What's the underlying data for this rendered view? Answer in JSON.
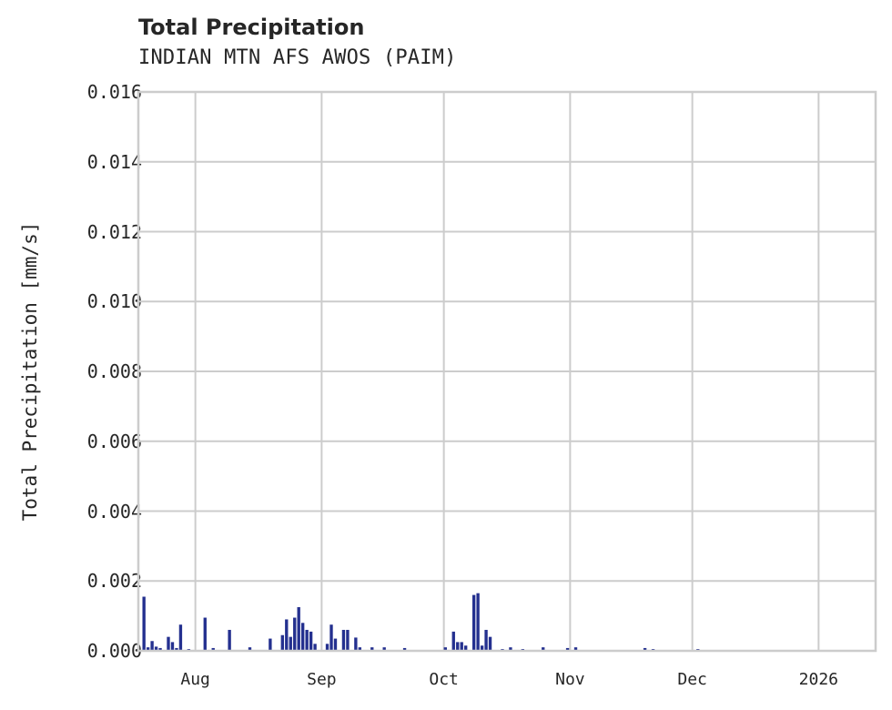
{
  "title": "Total Precipitation",
  "subtitle": "INDIAN MTN AFS AWOS (PAIM)",
  "colors": {
    "bar": "#24308f",
    "grid": "#cccccc",
    "text": "#262626"
  },
  "chart_data": {
    "type": "bar",
    "title": "Total Precipitation",
    "subtitle": "INDIAN MTN AFS AWOS (PAIM)",
    "xlabel": "",
    "ylabel": "Total Precipitation [mm/s]",
    "ylim": [
      0,
      0.016
    ],
    "yticks": [
      "0.000",
      "0.002",
      "0.004",
      "0.006",
      "0.008",
      "0.010",
      "0.012",
      "0.014",
      "0.016"
    ],
    "xticks": [
      "Aug",
      "Sep",
      "Oct",
      "Nov",
      "Dec",
      "2026"
    ],
    "xrange": [
      "2025-07-18",
      "2026-01-15"
    ],
    "grid": true,
    "legend": null,
    "series": [
      {
        "name": "Total Precipitation",
        "points": [
          [
            "2025-07-19",
            0.00155
          ],
          [
            "2025-07-20",
            0.0001
          ],
          [
            "2025-07-21",
            0.00028
          ],
          [
            "2025-07-22",
            0.00012
          ],
          [
            "2025-07-23",
            8e-05
          ],
          [
            "2025-07-25",
            0.0004
          ],
          [
            "2025-07-26",
            0.00025
          ],
          [
            "2025-07-27",
            8e-05
          ],
          [
            "2025-07-28",
            0.00075
          ],
          [
            "2025-07-30",
            5e-05
          ],
          [
            "2025-08-03",
            0.00095
          ],
          [
            "2025-08-05",
            8e-05
          ],
          [
            "2025-08-09",
            0.0006
          ],
          [
            "2025-08-14",
            0.0001
          ],
          [
            "2025-08-19",
            0.00035
          ],
          [
            "2025-08-22",
            0.00045
          ],
          [
            "2025-08-23",
            0.0009
          ],
          [
            "2025-08-24",
            0.0004
          ],
          [
            "2025-08-25",
            0.00095
          ],
          [
            "2025-08-26",
            0.00125
          ],
          [
            "2025-08-27",
            0.0008
          ],
          [
            "2025-08-28",
            0.0006
          ],
          [
            "2025-08-29",
            0.00055
          ],
          [
            "2025-08-30",
            0.0002
          ],
          [
            "2025-09-02",
            0.0002
          ],
          [
            "2025-09-03",
            0.00075
          ],
          [
            "2025-09-04",
            0.00035
          ],
          [
            "2025-09-06",
            0.0006
          ],
          [
            "2025-09-07",
            0.0006
          ],
          [
            "2025-09-09",
            0.00038
          ],
          [
            "2025-09-10",
            0.0001
          ],
          [
            "2025-09-13",
            0.0001
          ],
          [
            "2025-09-16",
            0.0001
          ],
          [
            "2025-09-21",
            8e-05
          ],
          [
            "2025-10-01",
            0.0001
          ],
          [
            "2025-10-03",
            0.00055
          ],
          [
            "2025-10-04",
            0.00025
          ],
          [
            "2025-10-05",
            0.00025
          ],
          [
            "2025-10-06",
            0.00015
          ],
          [
            "2025-10-08",
            0.0016
          ],
          [
            "2025-10-09",
            0.00165
          ],
          [
            "2025-10-10",
            0.00015
          ],
          [
            "2025-10-11",
            0.0006
          ],
          [
            "2025-10-12",
            0.0004
          ],
          [
            "2025-10-15",
            5e-05
          ],
          [
            "2025-10-17",
            0.0001
          ],
          [
            "2025-10-20",
            5e-05
          ],
          [
            "2025-10-25",
            0.0001
          ],
          [
            "2025-10-31",
            8e-05
          ],
          [
            "2025-11-02",
            0.0001
          ],
          [
            "2025-11-19",
            8e-05
          ],
          [
            "2025-11-21",
            5e-05
          ],
          [
            "2025-12-02",
            5e-05
          ]
        ]
      }
    ]
  }
}
